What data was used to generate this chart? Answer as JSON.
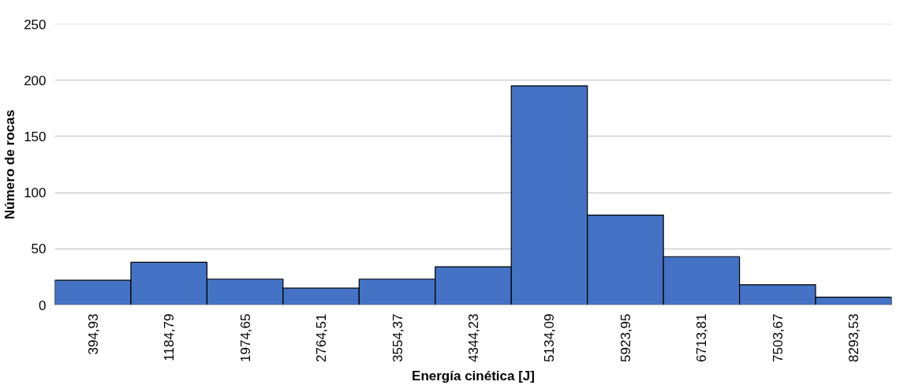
{
  "chart_data": {
    "type": "bar",
    "xlabel": "Energía cinética [J]",
    "ylabel": "Número de rocas",
    "categories": [
      "394,93",
      "1184,79",
      "1974,65",
      "2764,51",
      "3554,37",
      "4344,23",
      "5134,09",
      "5923,95",
      "6713,81",
      "7503,67",
      "8293,53"
    ],
    "values": [
      22,
      38,
      23,
      15,
      23,
      34,
      195,
      80,
      43,
      18,
      7
    ],
    "color": "#4472c4",
    "ylim": [
      0,
      250
    ],
    "yticks": [
      0,
      50,
      100,
      150,
      200,
      250
    ],
    "grid": "y"
  }
}
